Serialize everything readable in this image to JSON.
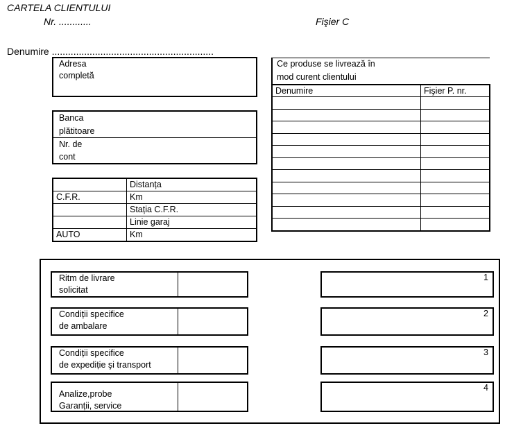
{
  "header": {
    "title": "CARTELA CLIENTULUI",
    "number_label": "Nr. ............",
    "file_label": "Fişier C",
    "name_label": "Denumire ............................................................"
  },
  "address": {
    "line1": "Adresa",
    "line2": "completă"
  },
  "bank": {
    "bank_line1": "Banca",
    "bank_line2": "plătitoare",
    "account_line1": "Nr. de",
    "account_line2": "cont"
  },
  "transport": {
    "rows": [
      [
        "",
        "Distanța"
      ],
      [
        "C.F.R.",
        "Km"
      ],
      [
        "",
        "Stația C.F.R."
      ],
      [
        "",
        "Linie garaj"
      ],
      [
        "AUTO",
        "Km"
      ]
    ]
  },
  "products": {
    "title_line1": "Ce produse se livrează în",
    "title_line2": "mod curent clientului",
    "columns": [
      "Denumire",
      "Fişier P. nr."
    ],
    "empty_rows": 11
  },
  "conditions": [
    {
      "line1": "Ritm de livrare",
      "line2": "solicitat",
      "number": "1"
    },
    {
      "line1": "Condiții specifice",
      "line2": "de ambalare",
      "number": "2"
    },
    {
      "line1": "Condiții specifice",
      "line2": "de expediție şi transport",
      "number": "3"
    },
    {
      "line1": "Analize,probe",
      "line2": "Garanții, service",
      "number": "4"
    }
  ]
}
